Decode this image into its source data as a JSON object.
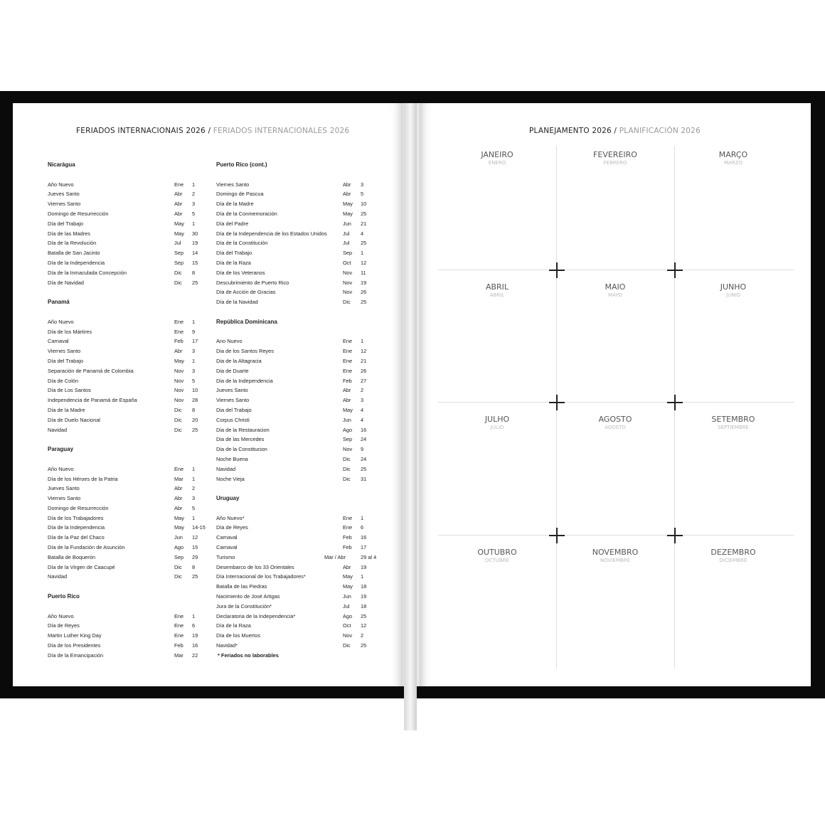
{
  "left_page": {
    "title": "FERIADOS INTERNACIONAIS 2026",
    "title_alt": "FERIADOS INTERNACIONALES 2026",
    "columns": [
      [
        {
          "country": "Nicarágua",
          "holidays": [
            [
              "Año Nuevo",
              "Ene",
              "1"
            ],
            [
              "Jueves Santo",
              "Abr",
              "2"
            ],
            [
              "Viernes Santo",
              "Abr",
              "3"
            ],
            [
              "Domingo de Resurrección",
              "Abr",
              "5"
            ],
            [
              "Día del Trabajo",
              "May",
              "1"
            ],
            [
              "Día de las Madres",
              "May",
              "30"
            ],
            [
              "Día de la Revolución",
              "Jul",
              "19"
            ],
            [
              "Batalla de San Jacinto",
              "Sep",
              "14"
            ],
            [
              "Día de la Independencia",
              "Sep",
              "15"
            ],
            [
              "Día de la Inmaculada Concepción",
              "Dic",
              "8"
            ],
            [
              "Día de Navidad",
              "Dic",
              "25"
            ]
          ]
        },
        {
          "country": "Panamá",
          "holidays": [
            [
              "Año Nuevo",
              "Ene",
              "1"
            ],
            [
              "Día de los Mártires",
              "Ene",
              "9"
            ],
            [
              "Carnaval",
              "Feb",
              "17"
            ],
            [
              "Viernes Santo",
              "Abr",
              "3"
            ],
            [
              "Día del Trabajo",
              "May",
              "1"
            ],
            [
              "Separación de Panamá de Colombia",
              "Nov",
              "3"
            ],
            [
              "Día de Colón",
              "Nov",
              "5"
            ],
            [
              "Día de Los Santos",
              "Nov",
              "10"
            ],
            [
              "Independencia de Panamá de España",
              "Nov",
              "28"
            ],
            [
              "Día de la Madre",
              "Dic",
              "8"
            ],
            [
              "Día de Duelo Nacional",
              "Dic",
              "20"
            ],
            [
              "Navidad",
              "Dic",
              "25"
            ]
          ]
        },
        {
          "country": "Paraguay",
          "holidays": [
            [
              "Año Nuevo",
              "Ene",
              "1"
            ],
            [
              "Día de los Héroes de la Patria",
              "Mar",
              "1"
            ],
            [
              "Jueves Santo",
              "Abr",
              "2"
            ],
            [
              "Viernes Santo",
              "Abr",
              "3"
            ],
            [
              "Domingo de Resurrección",
              "Abr",
              "5"
            ],
            [
              "Día de los Trabajadores",
              "May",
              "1"
            ],
            [
              "Día de la Independencia",
              "May",
              "14-15"
            ],
            [
              "Día de la Paz del Chaco",
              "Jun",
              "12"
            ],
            [
              "Día de la Fundación de Asunción",
              "Ago",
              "15"
            ],
            [
              "Batalla de Boquerón",
              "Sep",
              "29"
            ],
            [
              "Día de la Virgen de Caacupé",
              "Dic",
              "8"
            ],
            [
              "Navidad",
              "Dic",
              "25"
            ]
          ]
        },
        {
          "country": "Puerto Rico",
          "holidays": [
            [
              "Año Nuevo",
              "Ene",
              "1"
            ],
            [
              "Día de Reyes",
              "Ene",
              "6"
            ],
            [
              "Martin Luther King Day",
              "Ene",
              "19"
            ],
            [
              "Día de los Presidentes",
              "Feb",
              "16"
            ],
            [
              "Día de la Emancipación",
              "Mar",
              "22"
            ]
          ]
        }
      ],
      [
        {
          "country": "Puerto Rico (cont.)",
          "holidays": [
            [
              "Viernes Santo",
              "Abr",
              "3"
            ],
            [
              "Domingo de Pascua",
              "Abr",
              "5"
            ],
            [
              "Día de la Madre",
              "May",
              "10"
            ],
            [
              "Día de la Conmemoración",
              "May",
              "25"
            ],
            [
              "Día del Padre",
              "Jun",
              "21"
            ],
            [
              "Día de la Independencia de los Estados Unidos",
              "Jul",
              "4"
            ],
            [
              "Día de la Constitución",
              "Jul",
              "25"
            ],
            [
              "Día del Trabajo",
              "Sep",
              "1"
            ],
            [
              "Día de la Raza",
              "Oct",
              "12"
            ],
            [
              "Día de los Veteranos",
              "Nov",
              "11"
            ],
            [
              "Descubrimiento de Puerto Rico",
              "Nov",
              "19"
            ],
            [
              "Día de Acción de Gracias",
              "Nov",
              "26"
            ],
            [
              "Día de la Navidad",
              "Dic",
              "25"
            ]
          ]
        },
        {
          "country": "República Dominicana",
          "holidays": [
            [
              "Ano Nuevo",
              "Ene",
              "1"
            ],
            [
              "Dia de los Santos Reyes",
              "Ene",
              "12"
            ],
            [
              "Dia de la Altagracia",
              "Ene",
              "21"
            ],
            [
              "Dia de Duarte",
              "Ene",
              "26"
            ],
            [
              "Dia de la Independencia",
              "Feb",
              "27"
            ],
            [
              "Jueves Santo",
              "Abr",
              "2"
            ],
            [
              "Viernes Santo",
              "Abr",
              "3"
            ],
            [
              "Dia del Trabajo",
              "May",
              "4"
            ],
            [
              "Corpus Christi",
              "Jun",
              "4"
            ],
            [
              "Dia de la Restauracion",
              "Ago",
              "16"
            ],
            [
              "Dia de las Mercedes",
              "Sep",
              "24"
            ],
            [
              "Dia de la Constitucion",
              "Nov",
              "9"
            ],
            [
              "Noche Buena",
              "Dic",
              "24"
            ],
            [
              "Navidad",
              "Dic",
              "25"
            ],
            [
              "Noche Vieja",
              "Dic",
              "31"
            ]
          ]
        },
        {
          "country": "Uruguay",
          "holidays": [
            [
              "Año Nuevo*",
              "Ene",
              "1"
            ],
            [
              "Día de Reyes",
              "Ene",
              "6"
            ],
            [
              "Carnaval",
              "Feb",
              "16"
            ],
            [
              "Carnaval",
              "Feb",
              "17"
            ],
            [
              "Turismo",
              "Mar / Abr",
              "29 al 4"
            ],
            [
              "Desembarco de los 33 Orientales",
              "Abr",
              "19"
            ],
            [
              "Día Internacional de los Trabajadores*",
              "May",
              "1"
            ],
            [
              "Batalla de las Piedras",
              "May",
              "18"
            ],
            [
              "Nacimiento de José Artigas",
              "Jun",
              "19"
            ],
            [
              "Jura de la Constitución*",
              "Jul",
              "18"
            ],
            [
              "Declaratoria de la Independencia*",
              "Ago",
              "25"
            ],
            [
              "Día de la Raza",
              "Oct",
              "12"
            ],
            [
              "Día de los Muertos",
              "Nov",
              "2"
            ],
            [
              "Navidad*",
              "Dic",
              "25"
            ]
          ]
        }
      ]
    ],
    "footnote": "* Feriados no laborables"
  },
  "right_page": {
    "title": "PLANEJAMENTO 2026",
    "title_alt": "PLANIFICACIÓN 2026",
    "months": [
      [
        "JANEIRO",
        "ENERO"
      ],
      [
        "FEVEREIRO",
        "FEBRERO"
      ],
      [
        "MARÇO",
        "MARZO"
      ],
      [
        "ABRIL",
        "ABRIL"
      ],
      [
        "MAIO",
        "MAYO"
      ],
      [
        "JUNHO",
        "JUNIO"
      ],
      [
        "JULHO",
        "JULIO"
      ],
      [
        "AGOSTO",
        "AGOSTO"
      ],
      [
        "SETEMBRO",
        "SEPTIEMBRE"
      ],
      [
        "OUTUBRO",
        "OCTUBRE"
      ],
      [
        "NOVEMBRO",
        "NOVIEMBRE"
      ],
      [
        "DEZEMBRO",
        "DICIEMBRE"
      ]
    ]
  }
}
